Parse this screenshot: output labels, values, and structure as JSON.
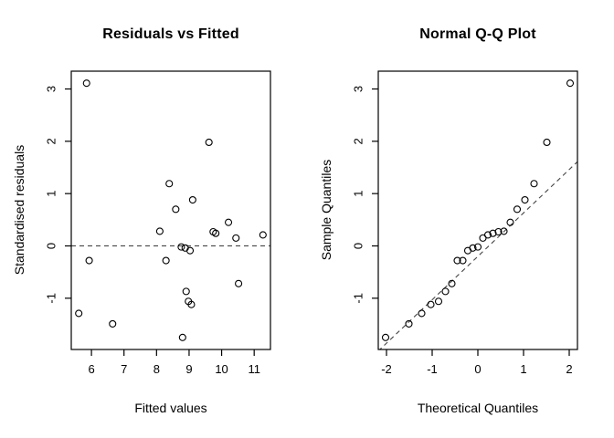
{
  "page": {
    "background_color": "#ffffff",
    "foreground_color": "#000000",
    "dashed_line_color": "#444444"
  },
  "chart_data": [
    {
      "type": "scatter",
      "title": "Residuals vs Fitted",
      "xlabel": "Fitted values",
      "ylabel": "Standardised residuals",
      "xlim": [
        5.38,
        11.5
      ],
      "ylim": [
        -1.98,
        3.34
      ],
      "xticks": [
        6,
        7,
        8,
        9,
        10,
        11
      ],
      "yticks": [
        -1,
        0,
        1,
        2,
        3
      ],
      "grid": false,
      "legend": false,
      "marker": "open-circle",
      "marker_color": "#000000",
      "points": [
        [
          5.85,
          3.11
        ],
        [
          9.61,
          1.98
        ],
        [
          8.39,
          1.19
        ],
        [
          9.11,
          0.88
        ],
        [
          8.59,
          0.7
        ],
        [
          10.21,
          0.45
        ],
        [
          8.1,
          0.28
        ],
        [
          9.74,
          0.27
        ],
        [
          9.82,
          0.24
        ],
        [
          10.44,
          0.15
        ],
        [
          11.27,
          0.21
        ],
        [
          8.76,
          -0.02
        ],
        [
          8.88,
          -0.04
        ],
        [
          9.03,
          -0.09
        ],
        [
          5.93,
          -0.28
        ],
        [
          8.29,
          -0.28
        ],
        [
          10.52,
          -0.72
        ],
        [
          8.91,
          -0.87
        ],
        [
          8.98,
          -1.06
        ],
        [
          9.07,
          -1.12
        ],
        [
          5.61,
          -1.29
        ],
        [
          6.65,
          -1.49
        ],
        [
          8.8,
          -1.75
        ]
      ],
      "ref_line": {
        "style": "dashed",
        "slope": 0,
        "intercept": 0
      }
    },
    {
      "type": "scatter",
      "title": "Normal Q-Q Plot",
      "xlabel": "Theoretical Quantiles",
      "ylabel": "Sample Quantiles",
      "xlim": [
        -2.18,
        2.18
      ],
      "ylim": [
        -1.98,
        3.34
      ],
      "xticks": [
        -2,
        -1,
        0,
        1,
        2
      ],
      "yticks": [
        -1,
        0,
        1,
        2,
        3
      ],
      "grid": false,
      "legend": false,
      "marker": "open-circle",
      "marker_color": "#000000",
      "points": [
        [
          -2.02,
          -1.75
        ],
        [
          -1.51,
          -1.49
        ],
        [
          -1.23,
          -1.29
        ],
        [
          -1.03,
          -1.12
        ],
        [
          -0.86,
          -1.06
        ],
        [
          -0.71,
          -0.87
        ],
        [
          -0.57,
          -0.72
        ],
        [
          -0.45,
          -0.28
        ],
        [
          -0.33,
          -0.28
        ],
        [
          -0.22,
          -0.09
        ],
        [
          -0.11,
          -0.04
        ],
        [
          0.0,
          -0.02
        ],
        [
          0.11,
          0.15
        ],
        [
          0.22,
          0.21
        ],
        [
          0.33,
          0.24
        ],
        [
          0.45,
          0.27
        ],
        [
          0.57,
          0.28
        ],
        [
          0.71,
          0.45
        ],
        [
          0.86,
          0.7
        ],
        [
          1.03,
          0.88
        ],
        [
          1.23,
          1.19
        ],
        [
          1.51,
          1.98
        ],
        [
          2.02,
          3.11
        ]
      ],
      "ref_line": {
        "style": "dashed",
        "slope": 0.83,
        "intercept": -0.2
      }
    }
  ]
}
